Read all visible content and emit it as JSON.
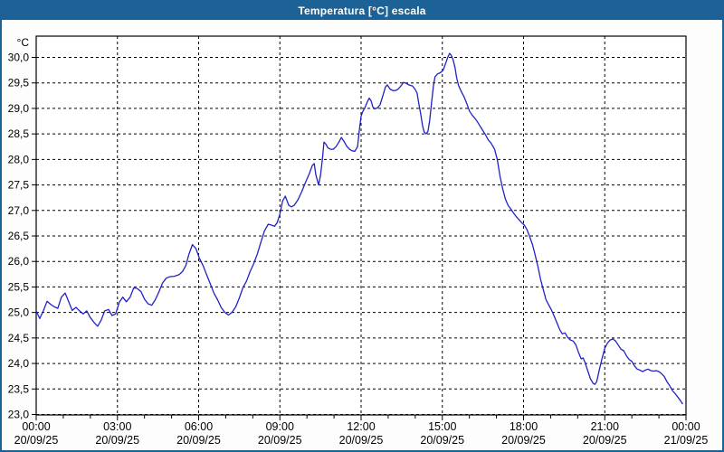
{
  "window": {
    "title": "Temperatura [°C] escala"
  },
  "colors": {
    "titlebar_bg": "#1d6296",
    "window_border": "#1d6296",
    "title_text": "#ffffff",
    "line": "#2121c8",
    "grid": "#000000",
    "axis": "#000000",
    "text": "#000000",
    "plot_bg": "#ffffff"
  },
  "chart_data": {
    "type": "line",
    "title": "Temperatura [°C] escala",
    "y_unit_label": "°C",
    "ylabel": "",
    "xlabel": "",
    "y_min": 23.0,
    "y_max": 30.0,
    "y_step": 0.5,
    "y_tick_labels": [
      "30,0",
      "29,5",
      "29,0",
      "28,5",
      "28,0",
      "27,5",
      "27,0",
      "26,5",
      "26,0",
      "25,5",
      "25,0",
      "24,5",
      "24,0",
      "23,5",
      "23,0"
    ],
    "x_hours_span": 24,
    "x_major_step_hours": 3,
    "x_minor_step_hours": 1,
    "grid": "dashed",
    "legend_position": "none",
    "x_ticks": [
      {
        "time": "00:00",
        "date": "20/09/25"
      },
      {
        "time": "03:00",
        "date": "20/09/25"
      },
      {
        "time": "06:00",
        "date": "20/09/25"
      },
      {
        "time": "09:00",
        "date": "20/09/25"
      },
      {
        "time": "12:00",
        "date": "20/09/25"
      },
      {
        "time": "15:00",
        "date": "20/09/25"
      },
      {
        "time": "18:00",
        "date": "20/09/25"
      },
      {
        "time": "21:00",
        "date": "20/09/25"
      },
      {
        "time": "00:00",
        "date": "21/09/25"
      }
    ],
    "series": [
      {
        "name": "Temperatura",
        "points": [
          [
            0.0,
            25.03
          ],
          [
            0.13,
            24.88
          ],
          [
            0.27,
            25.04
          ],
          [
            0.4,
            25.22
          ],
          [
            0.53,
            25.16
          ],
          [
            0.67,
            25.11
          ],
          [
            0.8,
            25.08
          ],
          [
            0.93,
            25.3
          ],
          [
            1.07,
            25.38
          ],
          [
            1.2,
            25.21
          ],
          [
            1.33,
            25.04
          ],
          [
            1.47,
            25.1
          ],
          [
            1.6,
            25.03
          ],
          [
            1.73,
            24.97
          ],
          [
            1.87,
            25.03
          ],
          [
            2.0,
            24.9
          ],
          [
            2.13,
            24.81
          ],
          [
            2.27,
            24.73
          ],
          [
            2.4,
            24.85
          ],
          [
            2.53,
            25.03
          ],
          [
            2.67,
            25.06
          ],
          [
            2.8,
            24.94
          ],
          [
            2.93,
            24.97
          ],
          [
            3.07,
            25.2
          ],
          [
            3.2,
            25.3
          ],
          [
            3.33,
            25.21
          ],
          [
            3.47,
            25.3
          ],
          [
            3.6,
            25.48
          ],
          [
            3.73,
            25.47
          ],
          [
            3.87,
            25.41
          ],
          [
            4.0,
            25.26
          ],
          [
            4.13,
            25.17
          ],
          [
            4.27,
            25.14
          ],
          [
            4.4,
            25.25
          ],
          [
            4.53,
            25.4
          ],
          [
            4.67,
            25.58
          ],
          [
            4.8,
            25.67
          ],
          [
            4.93,
            25.7
          ],
          [
            5.1,
            25.71
          ],
          [
            5.27,
            25.74
          ],
          [
            5.4,
            25.8
          ],
          [
            5.53,
            25.92
          ],
          [
            5.63,
            26.12
          ],
          [
            5.77,
            26.33
          ],
          [
            5.9,
            26.25
          ],
          [
            6.03,
            26.06
          ],
          [
            6.17,
            25.91
          ],
          [
            6.3,
            25.73
          ],
          [
            6.43,
            25.56
          ],
          [
            6.57,
            25.37
          ],
          [
            6.7,
            25.25
          ],
          [
            6.83,
            25.1
          ],
          [
            6.97,
            25.0
          ],
          [
            7.1,
            24.95
          ],
          [
            7.23,
            25.0
          ],
          [
            7.37,
            25.11
          ],
          [
            7.5,
            25.28
          ],
          [
            7.63,
            25.48
          ],
          [
            7.77,
            25.62
          ],
          [
            7.9,
            25.8
          ],
          [
            8.03,
            25.95
          ],
          [
            8.17,
            26.15
          ],
          [
            8.3,
            26.38
          ],
          [
            8.43,
            26.6
          ],
          [
            8.57,
            26.73
          ],
          [
            8.7,
            26.71
          ],
          [
            8.8,
            26.69
          ],
          [
            8.9,
            26.76
          ],
          [
            9.0,
            26.93
          ],
          [
            9.1,
            27.18
          ],
          [
            9.2,
            27.28
          ],
          [
            9.33,
            27.1
          ],
          [
            9.43,
            27.07
          ],
          [
            9.53,
            27.1
          ],
          [
            9.67,
            27.21
          ],
          [
            9.8,
            27.36
          ],
          [
            9.93,
            27.53
          ],
          [
            10.07,
            27.7
          ],
          [
            10.2,
            27.88
          ],
          [
            10.27,
            27.92
          ],
          [
            10.33,
            27.7
          ],
          [
            10.43,
            27.5
          ],
          [
            10.5,
            27.68
          ],
          [
            10.57,
            28.0
          ],
          [
            10.63,
            28.34
          ],
          [
            10.7,
            28.3
          ],
          [
            10.77,
            28.23
          ],
          [
            10.87,
            28.2
          ],
          [
            10.97,
            28.2
          ],
          [
            11.07,
            28.25
          ],
          [
            11.17,
            28.33
          ],
          [
            11.27,
            28.43
          ],
          [
            11.37,
            28.35
          ],
          [
            11.47,
            28.26
          ],
          [
            11.57,
            28.2
          ],
          [
            11.67,
            28.17
          ],
          [
            11.77,
            28.16
          ],
          [
            11.87,
            28.25
          ],
          [
            11.93,
            28.55
          ],
          [
            12.0,
            28.85
          ],
          [
            12.07,
            28.95
          ],
          [
            12.13,
            29.0
          ],
          [
            12.23,
            29.13
          ],
          [
            12.3,
            29.2
          ],
          [
            12.37,
            29.15
          ],
          [
            12.43,
            29.03
          ],
          [
            12.5,
            28.99
          ],
          [
            12.6,
            29.01
          ],
          [
            12.7,
            29.07
          ],
          [
            12.8,
            29.24
          ],
          [
            12.9,
            29.42
          ],
          [
            12.97,
            29.46
          ],
          [
            13.07,
            29.38
          ],
          [
            13.17,
            29.35
          ],
          [
            13.27,
            29.35
          ],
          [
            13.37,
            29.38
          ],
          [
            13.47,
            29.44
          ],
          [
            13.57,
            29.51
          ],
          [
            13.67,
            29.49
          ],
          [
            13.77,
            29.46
          ],
          [
            13.9,
            29.44
          ],
          [
            14.0,
            29.37
          ],
          [
            14.07,
            29.3
          ],
          [
            14.13,
            29.1
          ],
          [
            14.2,
            28.9
          ],
          [
            14.27,
            28.66
          ],
          [
            14.33,
            28.54
          ],
          [
            14.4,
            28.5
          ],
          [
            14.47,
            28.55
          ],
          [
            14.53,
            28.75
          ],
          [
            14.6,
            29.1
          ],
          [
            14.67,
            29.44
          ],
          [
            14.73,
            29.62
          ],
          [
            14.83,
            29.68
          ],
          [
            14.93,
            29.7
          ],
          [
            15.03,
            29.75
          ],
          [
            15.13,
            29.89
          ],
          [
            15.2,
            30.0
          ],
          [
            15.27,
            30.08
          ],
          [
            15.33,
            30.04
          ],
          [
            15.4,
            29.95
          ],
          [
            15.47,
            29.8
          ],
          [
            15.53,
            29.6
          ],
          [
            15.6,
            29.45
          ],
          [
            15.7,
            29.33
          ],
          [
            15.8,
            29.23
          ],
          [
            15.9,
            29.1
          ],
          [
            16.0,
            28.95
          ],
          [
            16.1,
            28.87
          ],
          [
            16.23,
            28.79
          ],
          [
            16.33,
            28.71
          ],
          [
            16.47,
            28.59
          ],
          [
            16.6,
            28.48
          ],
          [
            16.7,
            28.38
          ],
          [
            16.8,
            28.32
          ],
          [
            16.93,
            28.2
          ],
          [
            17.03,
            28.0
          ],
          [
            17.13,
            27.67
          ],
          [
            17.23,
            27.42
          ],
          [
            17.33,
            27.22
          ],
          [
            17.43,
            27.1
          ],
          [
            17.53,
            27.03
          ],
          [
            17.63,
            26.95
          ],
          [
            17.73,
            26.88
          ],
          [
            17.83,
            26.82
          ],
          [
            17.93,
            26.76
          ],
          [
            18.03,
            26.71
          ],
          [
            18.13,
            26.62
          ],
          [
            18.23,
            26.48
          ],
          [
            18.33,
            26.33
          ],
          [
            18.43,
            26.12
          ],
          [
            18.53,
            25.9
          ],
          [
            18.63,
            25.65
          ],
          [
            18.73,
            25.45
          ],
          [
            18.83,
            25.25
          ],
          [
            18.93,
            25.15
          ],
          [
            19.03,
            25.05
          ],
          [
            19.13,
            24.93
          ],
          [
            19.23,
            24.8
          ],
          [
            19.33,
            24.67
          ],
          [
            19.43,
            24.58
          ],
          [
            19.53,
            24.6
          ],
          [
            19.63,
            24.51
          ],
          [
            19.73,
            24.46
          ],
          [
            19.83,
            24.44
          ],
          [
            19.93,
            24.37
          ],
          [
            20.03,
            24.22
          ],
          [
            20.13,
            24.09
          ],
          [
            20.2,
            24.11
          ],
          [
            20.27,
            24.02
          ],
          [
            20.37,
            23.86
          ],
          [
            20.47,
            23.7
          ],
          [
            20.57,
            23.61
          ],
          [
            20.63,
            23.59
          ],
          [
            20.7,
            23.64
          ],
          [
            20.8,
            23.88
          ],
          [
            20.9,
            24.1
          ],
          [
            21.0,
            24.3
          ],
          [
            21.1,
            24.4
          ],
          [
            21.2,
            24.46
          ],
          [
            21.3,
            24.48
          ],
          [
            21.4,
            24.44
          ],
          [
            21.5,
            24.36
          ],
          [
            21.6,
            24.28
          ],
          [
            21.7,
            24.25
          ],
          [
            21.8,
            24.15
          ],
          [
            21.9,
            24.08
          ],
          [
            22.0,
            24.04
          ],
          [
            22.1,
            23.95
          ],
          [
            22.2,
            23.89
          ],
          [
            22.3,
            23.87
          ],
          [
            22.4,
            23.84
          ],
          [
            22.5,
            23.87
          ],
          [
            22.6,
            23.89
          ],
          [
            22.7,
            23.86
          ],
          [
            22.8,
            23.85
          ],
          [
            22.9,
            23.86
          ],
          [
            23.0,
            23.84
          ],
          [
            23.1,
            23.8
          ],
          [
            23.2,
            23.74
          ],
          [
            23.3,
            23.64
          ],
          [
            23.4,
            23.56
          ],
          [
            23.5,
            23.47
          ],
          [
            23.6,
            23.41
          ],
          [
            23.7,
            23.34
          ],
          [
            23.8,
            23.27
          ],
          [
            23.87,
            23.21
          ]
        ]
      }
    ]
  }
}
